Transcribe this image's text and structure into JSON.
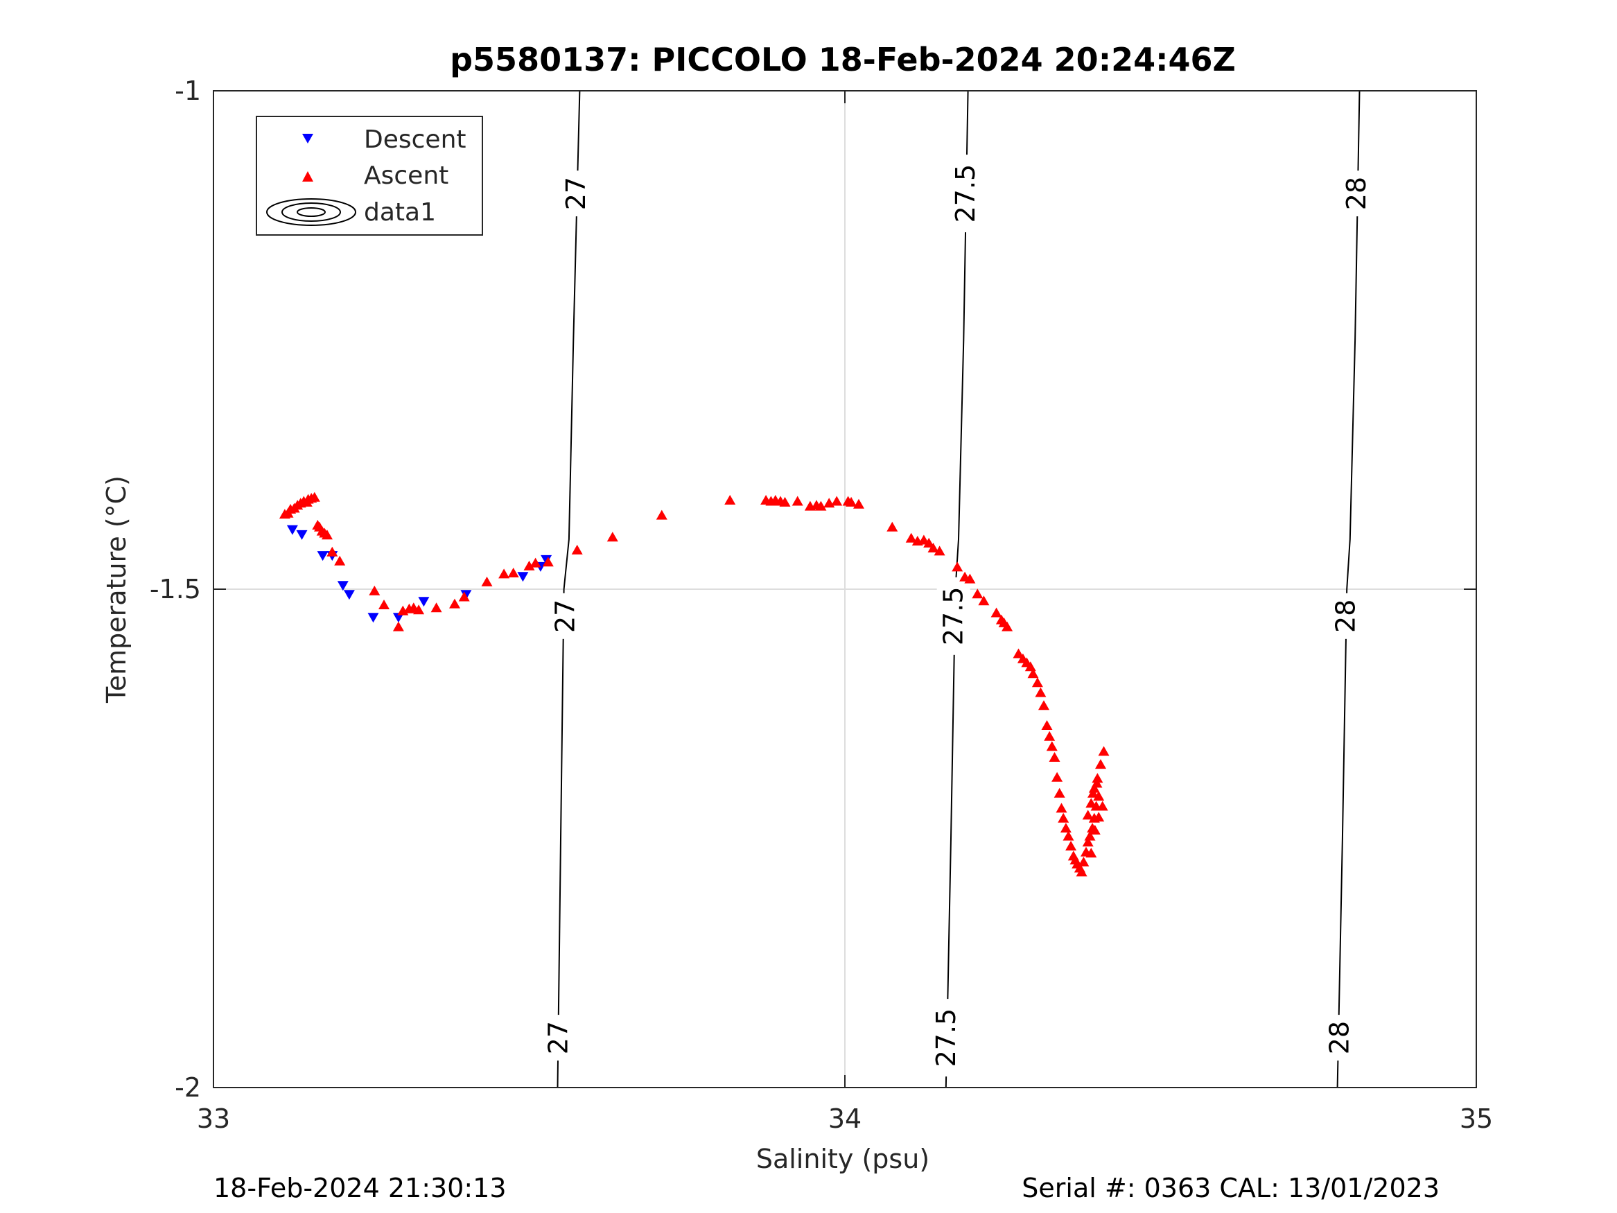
{
  "chart_data": {
    "type": "scatter",
    "title": "p5580137: PICCOLO 18-Feb-2024 20:24:46Z",
    "xlabel": "Salinity (psu)",
    "ylabel": "Temperature (°C)",
    "xlim": [
      33,
      35
    ],
    "ylim": [
      -2,
      -1
    ],
    "xticks": [
      33,
      34,
      35
    ],
    "xtick_labels": [
      "33",
      "34",
      "35"
    ],
    "yticks": [
      -1,
      -1.5,
      -2
    ],
    "ytick_labels": [
      "-1",
      "-1.5",
      "-2"
    ],
    "grid": true,
    "legend_position": "top-left",
    "footer_left": "18-Feb-2024 21:30:13",
    "footer_right": "Serial #: 0363  CAL: 13/01/2023",
    "colors": {
      "descent": "#0000ff",
      "ascent": "#ff0000",
      "contour": "#000000",
      "grid": "#dddddd"
    },
    "legend": [
      {
        "label": "Descent",
        "marker": "triangle-down",
        "color": "#0000ff"
      },
      {
        "label": "Ascent",
        "marker": "triangle-up",
        "color": "#ff0000"
      },
      {
        "label": "data1",
        "marker": "contour-ellipses",
        "color": "#000000"
      }
    ],
    "contours": [
      {
        "level": "27",
        "points": [
          [
            33.58,
            -1.0
          ],
          [
            33.57,
            -1.25
          ],
          [
            33.563,
            -1.45
          ],
          [
            33.555,
            -1.5
          ],
          [
            33.55,
            -1.75
          ],
          [
            33.545,
            -2.0
          ]
        ],
        "labels": [
          [
            33.574,
            -1.103
          ],
          [
            33.557,
            -1.527
          ],
          [
            33.546,
            -1.95
          ]
        ]
      },
      {
        "level": "27.5",
        "points": [
          [
            34.195,
            -1.0
          ],
          [
            34.188,
            -1.25
          ],
          [
            34.18,
            -1.45
          ],
          [
            34.175,
            -1.5
          ],
          [
            34.168,
            -1.75
          ],
          [
            34.16,
            -2.0
          ]
        ],
        "labels": [
          [
            34.191,
            -1.103
          ],
          [
            34.172,
            -1.527
          ],
          [
            34.16,
            -1.95
          ]
        ]
      },
      {
        "level": "28",
        "points": [
          [
            34.815,
            -1.0
          ],
          [
            34.808,
            -1.25
          ],
          [
            34.8,
            -1.45
          ],
          [
            34.795,
            -1.5
          ],
          [
            34.788,
            -1.75
          ],
          [
            34.78,
            -2.0
          ]
        ],
        "labels": [
          [
            34.81,
            -1.103
          ],
          [
            34.793,
            -1.527
          ],
          [
            34.783,
            -1.95
          ]
        ]
      }
    ],
    "series": [
      {
        "name": "Descent",
        "marker": "triangle-down",
        "points": [
          [
            33.125,
            -1.44
          ],
          [
            33.14,
            -1.445
          ],
          [
            33.173,
            -1.466
          ],
          [
            33.188,
            -1.466
          ],
          [
            33.205,
            -1.496
          ],
          [
            33.215,
            -1.505
          ],
          [
            33.253,
            -1.528
          ],
          [
            33.293,
            -1.528
          ],
          [
            33.333,
            -1.512
          ],
          [
            33.4,
            -1.505
          ],
          [
            33.49,
            -1.487
          ],
          [
            33.518,
            -1.477
          ],
          [
            33.527,
            -1.47
          ]
        ]
      },
      {
        "name": "Ascent",
        "marker": "triangle-up",
        "points": [
          [
            33.113,
            -1.425
          ],
          [
            33.118,
            -1.424
          ],
          [
            33.122,
            -1.42
          ],
          [
            33.128,
            -1.419
          ],
          [
            33.133,
            -1.416
          ],
          [
            33.138,
            -1.414
          ],
          [
            33.143,
            -1.412
          ],
          [
            33.15,
            -1.41
          ],
          [
            33.155,
            -1.409
          ],
          [
            33.16,
            -1.408
          ],
          [
            33.148,
            -1.413
          ],
          [
            33.165,
            -1.436
          ],
          [
            33.168,
            -1.438
          ],
          [
            33.172,
            -1.442
          ],
          [
            33.176,
            -1.444
          ],
          [
            33.18,
            -1.446
          ],
          [
            33.188,
            -1.463
          ],
          [
            33.2,
            -1.472
          ],
          [
            33.255,
            -1.502
          ],
          [
            33.27,
            -1.516
          ],
          [
            33.293,
            -1.538
          ],
          [
            33.3,
            -1.522
          ],
          [
            33.31,
            -1.52
          ],
          [
            33.317,
            -1.519
          ],
          [
            33.325,
            -1.521
          ],
          [
            33.353,
            -1.519
          ],
          [
            33.382,
            -1.515
          ],
          [
            33.397,
            -1.508
          ],
          [
            33.433,
            -1.493
          ],
          [
            33.46,
            -1.485
          ],
          [
            33.475,
            -1.484
          ],
          [
            33.5,
            -1.477
          ],
          [
            33.51,
            -1.474
          ],
          [
            33.53,
            -1.473
          ],
          [
            33.576,
            -1.461
          ],
          [
            33.632,
            -1.448
          ],
          [
            33.71,
            -1.426
          ],
          [
            33.818,
            -1.411
          ],
          [
            33.875,
            -1.411
          ],
          [
            33.883,
            -1.412
          ],
          [
            33.89,
            -1.411
          ],
          [
            33.898,
            -1.412
          ],
          [
            33.905,
            -1.413
          ],
          [
            33.925,
            -1.412
          ],
          [
            33.945,
            -1.417
          ],
          [
            33.955,
            -1.416
          ],
          [
            33.962,
            -1.417
          ],
          [
            33.975,
            -1.414
          ],
          [
            33.987,
            -1.412
          ],
          [
            34.005,
            -1.412
          ],
          [
            34.01,
            -1.413
          ],
          [
            34.022,
            -1.415
          ],
          [
            34.075,
            -1.438
          ],
          [
            34.105,
            -1.449
          ],
          [
            34.115,
            -1.452
          ],
          [
            34.125,
            -1.451
          ],
          [
            34.133,
            -1.454
          ],
          [
            34.14,
            -1.459
          ],
          [
            34.15,
            -1.462
          ],
          [
            34.178,
            -1.478
          ],
          [
            34.19,
            -1.488
          ],
          [
            34.198,
            -1.49
          ],
          [
            34.21,
            -1.505
          ],
          [
            34.22,
            -1.512
          ],
          [
            34.24,
            -1.524
          ],
          [
            34.248,
            -1.531
          ],
          [
            34.252,
            -1.534
          ],
          [
            34.257,
            -1.538
          ],
          [
            34.275,
            -1.565
          ],
          [
            34.282,
            -1.57
          ],
          [
            34.288,
            -1.574
          ],
          [
            34.294,
            -1.578
          ],
          [
            34.298,
            -1.585
          ],
          [
            34.305,
            -1.594
          ],
          [
            34.31,
            -1.604
          ],
          [
            34.315,
            -1.617
          ],
          [
            34.32,
            -1.637
          ],
          [
            34.324,
            -1.648
          ],
          [
            34.328,
            -1.658
          ],
          [
            34.332,
            -1.669
          ],
          [
            34.336,
            -1.689
          ],
          [
            34.34,
            -1.705
          ],
          [
            34.343,
            -1.72
          ],
          [
            34.346,
            -1.73
          ],
          [
            34.35,
            -1.74
          ],
          [
            34.354,
            -1.748
          ],
          [
            34.358,
            -1.758
          ],
          [
            34.362,
            -1.768
          ],
          [
            34.365,
            -1.772
          ],
          [
            34.368,
            -1.776
          ],
          [
            34.372,
            -1.78
          ],
          [
            34.375,
            -1.784
          ],
          [
            34.378,
            -1.774
          ],
          [
            34.382,
            -1.764
          ],
          [
            34.385,
            -1.754
          ],
          [
            34.388,
            -1.748
          ],
          [
            34.392,
            -1.74
          ],
          [
            34.395,
            -1.73
          ],
          [
            34.398,
            -1.718
          ],
          [
            34.402,
            -1.708
          ],
          [
            34.39,
            -1.715
          ],
          [
            34.395,
            -1.7
          ],
          [
            34.4,
            -1.69
          ],
          [
            34.405,
            -1.676
          ],
          [
            34.41,
            -1.663
          ],
          [
            34.39,
            -1.765
          ],
          [
            34.396,
            -1.742
          ],
          [
            34.402,
            -1.729
          ],
          [
            34.408,
            -1.718
          ],
          [
            34.385,
            -1.727
          ],
          [
            34.393,
            -1.705
          ],
          [
            34.399,
            -1.695
          ]
        ]
      }
    ]
  }
}
